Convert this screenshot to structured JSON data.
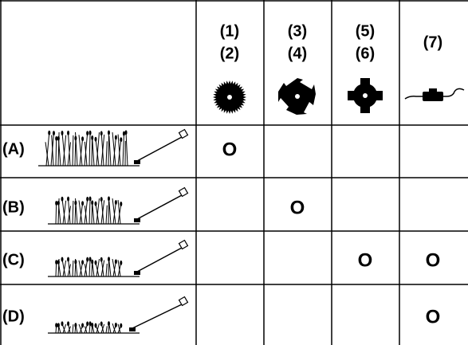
{
  "header": {
    "columns": [
      [
        "(1)",
        "(2)"
      ],
      [
        "(3)",
        "(4)"
      ],
      [
        "(5)",
        "(6)"
      ],
      [
        "(7)"
      ]
    ]
  },
  "rows": [
    {
      "label": "(A)",
      "cells": [
        "O",
        null,
        null,
        null
      ]
    },
    {
      "label": "(B)",
      "cells": [
        null,
        "O",
        null,
        null
      ]
    },
    {
      "label": "(C)",
      "cells": [
        null,
        null,
        "O",
        "O"
      ]
    },
    {
      "label": "(D)",
      "cells": [
        null,
        null,
        null,
        "O"
      ]
    }
  ]
}
